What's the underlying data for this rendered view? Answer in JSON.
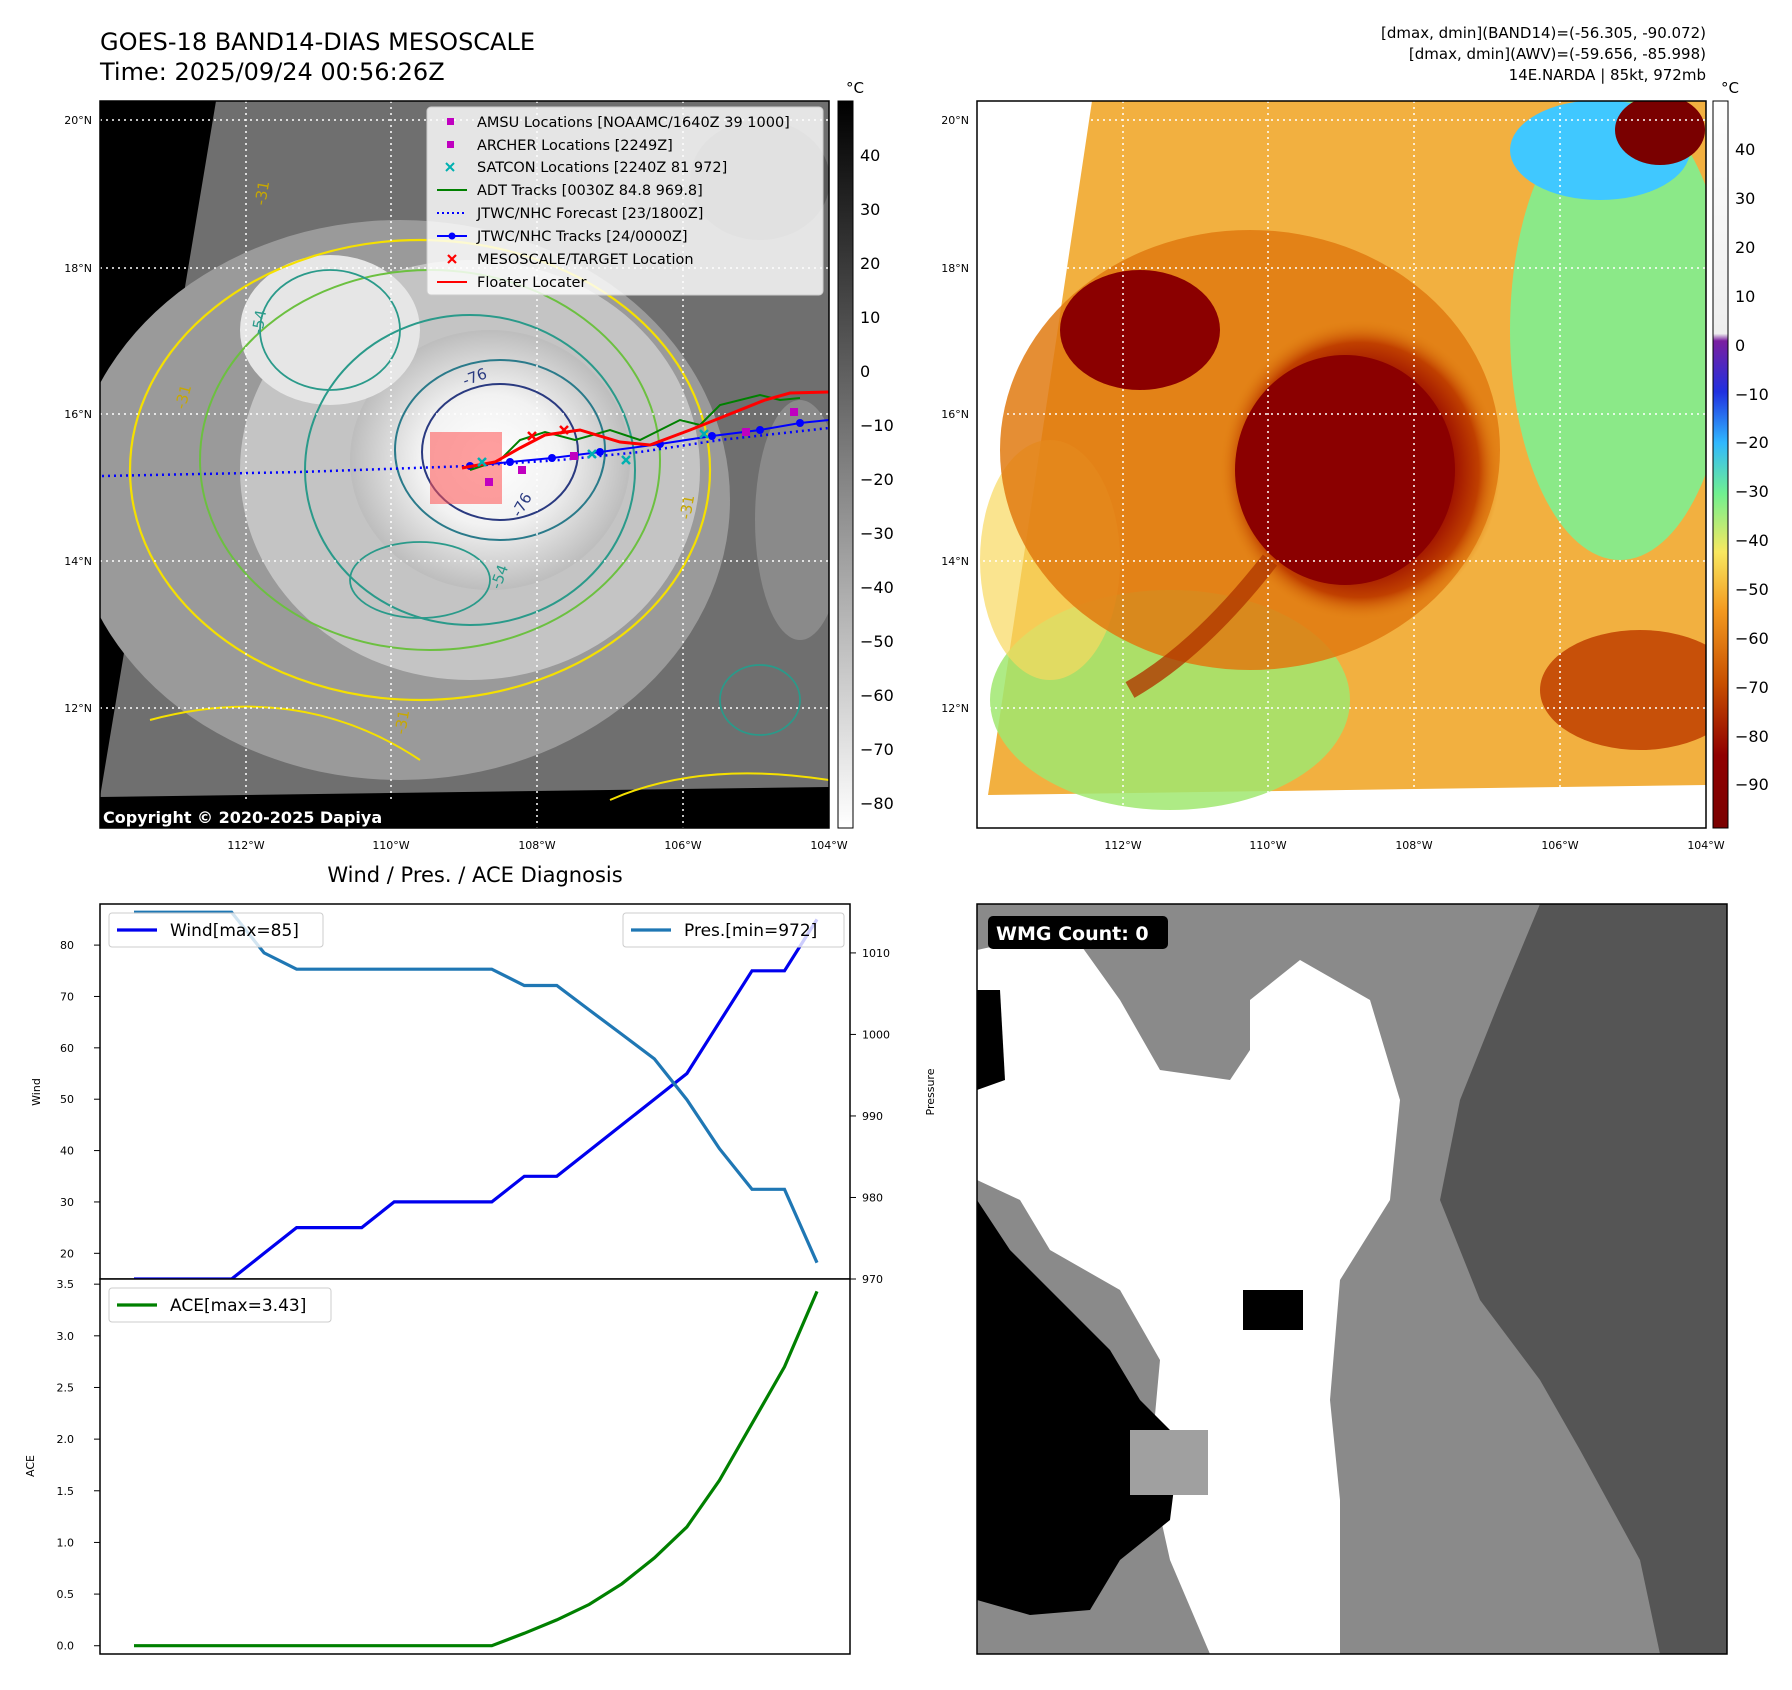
{
  "header": {
    "title": "GOES-18 BAND14-DIAS MESOSCALE",
    "time": "Time: 2025/09/24 00:56:26Z",
    "info1": "[dmax, dmin](BAND14)=(-56.305, -90.072)",
    "info2": "[dmax, dmin](AWV)=(-59.656, -85.998)",
    "info3": "14E.NARDA | 85kt, 972mb"
  },
  "copyright": "Copyright © 2020-2025 Dapiya",
  "map": {
    "lat_labels": [
      "20°N",
      "18°N",
      "16°N",
      "14°N",
      "12°N"
    ],
    "lon_labels": [
      "112°W",
      "110°W",
      "108°W",
      "106°W",
      "104°W"
    ],
    "contour_labels": [
      "-31",
      "-54",
      "-76",
      "-76",
      "-54",
      "-31",
      "-31",
      "-31"
    ]
  },
  "legend": [
    {
      "label": "AMSU Locations [NOAAMC/1640Z 39 1000]",
      "color": "#c000c0",
      "marker": "square"
    },
    {
      "label": "ARCHER Locations [2249Z]",
      "color": "#c000c0",
      "marker": "square"
    },
    {
      "label": "SATCON Locations [2240Z 81 972]",
      "color": "#00b0b0",
      "marker": "x"
    },
    {
      "label": "ADT Tracks [0030Z 84.8 969.8]",
      "color": "#008000",
      "marker": "line"
    },
    {
      "label": "JTWC/NHC Forecast [23/1800Z]",
      "color": "#0000ff",
      "marker": "dotted"
    },
    {
      "label": "JTWC/NHC Tracks [24/0000Z]",
      "color": "#0000ff",
      "marker": "line-dot"
    },
    {
      "label": "MESOSCALE/TARGET Location",
      "color": "#ff0000",
      "marker": "x"
    },
    {
      "label": "Floater Locater",
      "color": "#ff0000",
      "marker": "line"
    }
  ],
  "colorbar_gray": {
    "unit": "°C",
    "ticks": [
      "40",
      "30",
      "20",
      "10",
      "0",
      "−10",
      "−20",
      "−30",
      "−40",
      "−50",
      "−60",
      "−70",
      "−80"
    ]
  },
  "colorbar_wv": {
    "unit": "°C",
    "ticks": [
      "40",
      "30",
      "20",
      "10",
      "0",
      "−10",
      "−20",
      "−30",
      "−40",
      "−50",
      "−60",
      "−70",
      "−80",
      "−90"
    ]
  },
  "wmg_label": "WMG Count: 0",
  "chart_data": [
    {
      "type": "line",
      "title": "Wind / Pres. / ACE Diagnosis",
      "ylabel": "Wind",
      "ylim": [
        15,
        88
      ],
      "yticks": [
        "20",
        "30",
        "40",
        "50",
        "60",
        "70",
        "80"
      ],
      "series": [
        {
          "name": "Wind[max=85]",
          "color": "#0000ee",
          "values": [
            15,
            15,
            15,
            15,
            20,
            25,
            25,
            25,
            30,
            30,
            30,
            30,
            35,
            35,
            40,
            45,
            50,
            55,
            65,
            75,
            75,
            85
          ]
        }
      ]
    },
    {
      "type": "line",
      "ylabel": "Pressure",
      "ylim": [
        970,
        1016
      ],
      "yticks": [
        "1010",
        "1000",
        "990",
        "980",
        "970"
      ],
      "series": [
        {
          "name": "Pres.[min=972]",
          "color": "#1f77b4",
          "values": [
            1015,
            1015,
            1015,
            1015,
            1010,
            1008,
            1008,
            1008,
            1008,
            1008,
            1008,
            1008,
            1006,
            1006,
            1003,
            1000,
            997,
            992,
            986,
            981,
            981,
            972
          ]
        }
      ]
    },
    {
      "type": "line",
      "ylabel": "ACE",
      "ylim": [
        -0.08,
        3.55
      ],
      "yticks": [
        "0.0",
        "0.5",
        "1.0",
        "1.5",
        "2.0",
        "2.5",
        "3.0",
        "3.5"
      ],
      "series": [
        {
          "name": "ACE[max=3.43]",
          "color": "#008000",
          "values": [
            0,
            0,
            0,
            0,
            0,
            0,
            0,
            0,
            0,
            0,
            0,
            0,
            0.12,
            0.25,
            0.4,
            0.6,
            0.85,
            1.15,
            1.6,
            2.15,
            2.7,
            3.43
          ]
        }
      ]
    }
  ]
}
